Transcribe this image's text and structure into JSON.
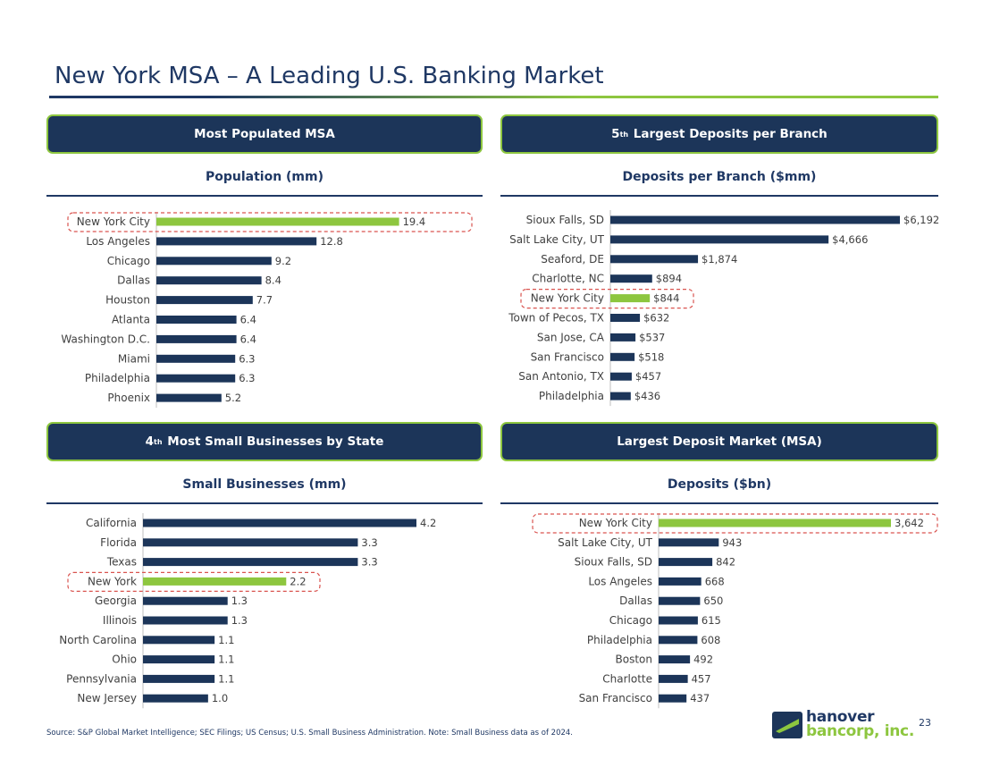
{
  "page": {
    "title": "New York MSA – A Leading U.S. Banking Market",
    "footnote": "Source: S&P Global Market Intelligence; SEC Filings; US Census; U.S. Small Business Administration. Note: Small Business data as of 2024.",
    "page_number": "23",
    "logo": {
      "line1": "hanover",
      "line2": "bancorp, inc."
    },
    "colors": {
      "navy": "#1c3559",
      "green": "#8dc63f",
      "highlight_border": "#d9534f"
    }
  },
  "panels": {
    "population": {
      "banner_text": "Most Populated MSA",
      "banner_sup": "",
      "banner_rest": ""
    },
    "deposits_branch": {
      "banner_text": "",
      "banner_sup": "th",
      "banner_num": "5",
      "banner_rest": " Largest Deposits per Branch"
    },
    "small_business": {
      "banner_text": "",
      "banner_sup": "th",
      "banner_num": "4",
      "banner_rest": " Most Small Businesses by State"
    },
    "deposits_msa": {
      "banner_text": "Largest Deposit Market (MSA)",
      "banner_sup": "",
      "banner_rest": ""
    }
  },
  "chart_data": [
    {
      "id": "population",
      "type": "bar",
      "orientation": "horizontal",
      "title": "Population (mm)",
      "categories": [
        "New York City",
        "Los Angeles",
        "Chicago",
        "Dallas",
        "Houston",
        "Atlanta",
        "Washington D.C.",
        "Miami",
        "Philadelphia",
        "Phoenix"
      ],
      "values": [
        19.4,
        12.8,
        9.2,
        8.4,
        7.7,
        6.4,
        6.4,
        6.3,
        6.3,
        5.2
      ],
      "value_labels": [
        "19.4",
        "12.8",
        "9.2",
        "8.4",
        "7.7",
        "6.4",
        "6.4",
        "6.3",
        "6.3",
        "5.2"
      ],
      "highlight": "New York City",
      "xlim": [
        0,
        20
      ]
    },
    {
      "id": "deposits_branch",
      "type": "bar",
      "orientation": "horizontal",
      "title": "Deposits per Branch ($mm)",
      "categories": [
        "Sioux Falls, SD",
        "Salt Lake City, UT",
        "Seaford, DE",
        "Charlotte, NC",
        "New York City",
        "Town of Pecos, TX",
        "San Jose, CA",
        "San Francisco",
        "San Antonio, TX",
        "Philadelphia"
      ],
      "values": [
        6192,
        4666,
        1874,
        894,
        844,
        632,
        537,
        518,
        457,
        436
      ],
      "value_labels": [
        "$6,192",
        "$4,666",
        "$1,874",
        "$894",
        "$844",
        "$632",
        "$537",
        "$518",
        "$457",
        "$436"
      ],
      "highlight": "New York City",
      "xlim": [
        0,
        6192
      ]
    },
    {
      "id": "small_business",
      "type": "bar",
      "orientation": "horizontal",
      "title": "Small Businesses (mm)",
      "categories": [
        "California",
        "Florida",
        "Texas",
        "New York",
        "Georgia",
        "Illinois",
        "North Carolina",
        "Ohio",
        "Pennsylvania",
        "New Jersey"
      ],
      "values": [
        4.2,
        3.3,
        3.3,
        2.2,
        1.3,
        1.3,
        1.1,
        1.1,
        1.1,
        1.0
      ],
      "value_labels": [
        "4.2",
        "3.3",
        "3.3",
        "2.2",
        "1.3",
        "1.3",
        "1.1",
        "1.1",
        "1.1",
        "1.0"
      ],
      "highlight": "New York",
      "xlim": [
        0,
        4.3
      ]
    },
    {
      "id": "deposits_msa",
      "type": "bar",
      "orientation": "horizontal",
      "title": "Deposits ($bn)",
      "categories": [
        "New York City",
        "Salt Lake City, UT",
        "Sioux Falls, SD",
        "Los Angeles",
        "Dallas",
        "Chicago",
        "Philadelphia",
        "Boston",
        "Charlotte",
        "San Francisco"
      ],
      "values": [
        3642,
        943,
        842,
        668,
        650,
        615,
        608,
        492,
        457,
        437
      ],
      "value_labels": [
        "3,642",
        "943",
        "842",
        "668",
        "650",
        "615",
        "608",
        "492",
        "457",
        "437"
      ],
      "highlight": "New York City",
      "xlim": [
        0,
        3700
      ]
    }
  ]
}
